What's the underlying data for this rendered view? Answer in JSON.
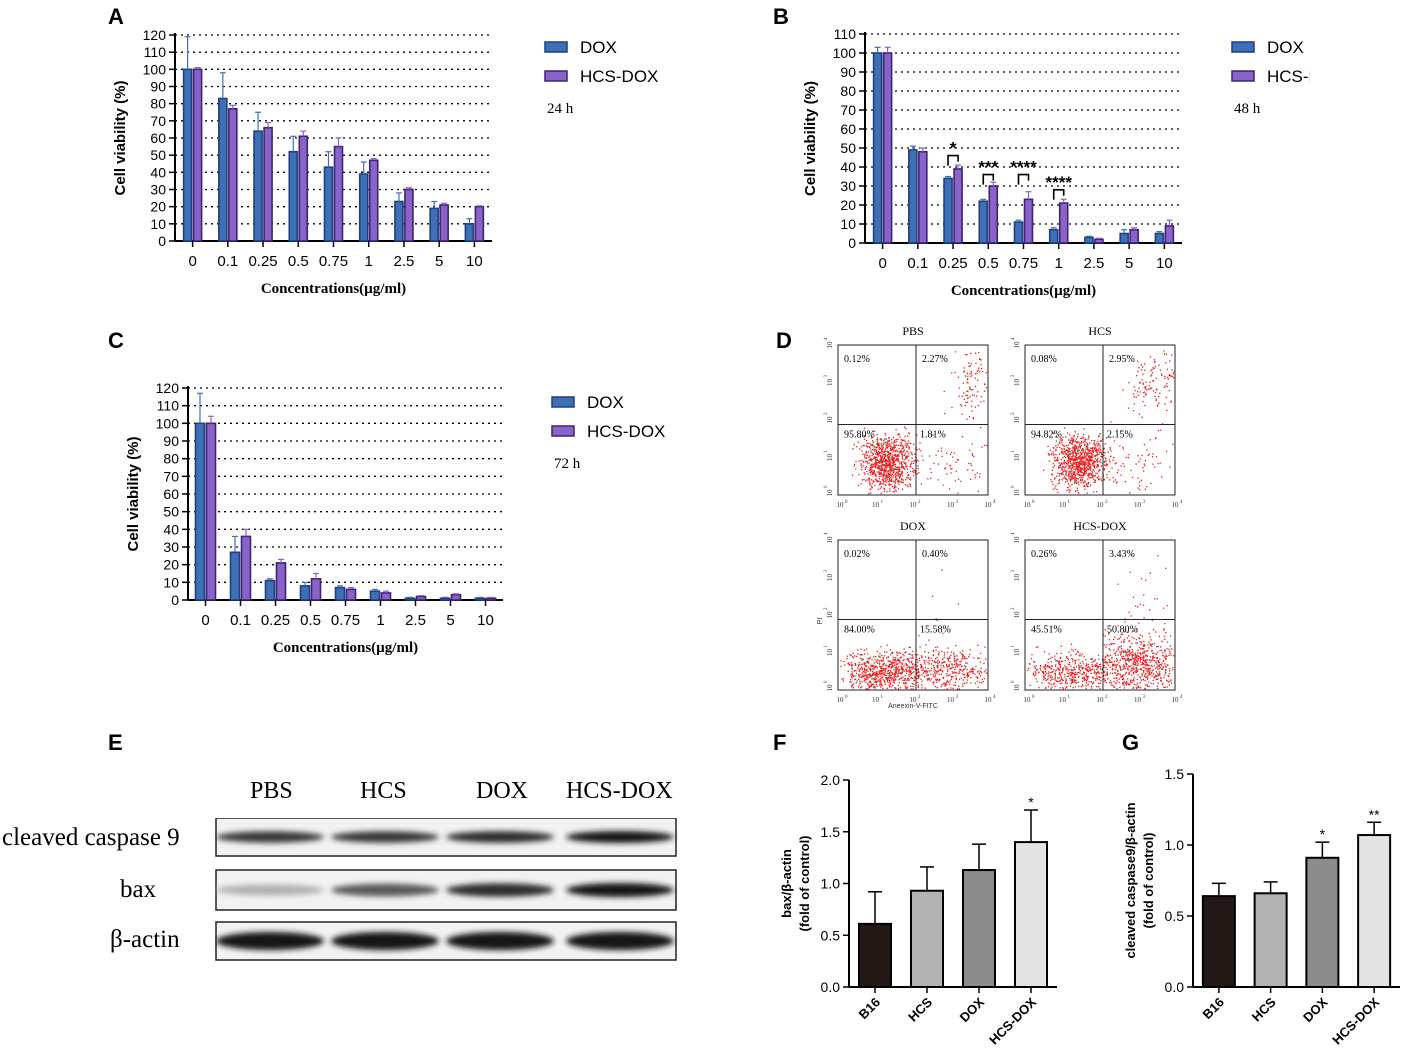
{
  "panel_labels": {
    "A": "A",
    "B": "B",
    "C": "C",
    "D": "D",
    "E": "E",
    "F": "F",
    "G": "G"
  },
  "colors": {
    "dox_fill": "#3f6fb5",
    "dox_edge": "#1e3f80",
    "hcs_fill": "#8a63c9",
    "hcs_edge": "#3d2475",
    "dot": "#e32222"
  },
  "chart_data": [
    {
      "id": "A",
      "type": "bar",
      "categories": [
        "0",
        "0.1",
        "0.25",
        "0.5",
        "0.75",
        "1",
        "2.5",
        "5",
        "10"
      ],
      "series": [
        {
          "name": "DOX",
          "values": [
            100,
            83,
            64,
            52,
            43,
            39,
            23,
            19,
            10
          ],
          "errors": [
            19,
            15,
            11,
            9,
            9,
            7,
            5,
            4,
            3
          ]
        },
        {
          "name": "HCS-DOX",
          "values": [
            100,
            77,
            66,
            61,
            55,
            47,
            30,
            21,
            20
          ],
          "errors": [
            1,
            2,
            3,
            3,
            5,
            1,
            1,
            1,
            0.5
          ]
        }
      ],
      "ylim": [
        0,
        120
      ],
      "yticks": [
        0,
        10,
        20,
        30,
        40,
        50,
        60,
        70,
        80,
        90,
        100,
        110,
        120
      ],
      "ylabel": "Cell viability (%)",
      "xlabel": "Concentrations(µg/ml)",
      "annotation": "24 h",
      "legend_position": "top-right",
      "grid": "dotted horizontal",
      "significance": []
    },
    {
      "id": "B",
      "type": "bar",
      "categories": [
        "0",
        "0.1",
        "0.25",
        "0.5",
        "0.75",
        "1",
        "2.5",
        "5",
        "10"
      ],
      "series": [
        {
          "name": "DOX",
          "values": [
            100,
            49,
            34,
            22,
            11,
            7,
            3,
            5,
            5
          ],
          "errors": [
            3,
            2,
            1,
            1,
            1,
            1,
            0.5,
            2,
            1
          ]
        },
        {
          "name": "HCS-DOX",
          "values": [
            100,
            48,
            39,
            30,
            23,
            21,
            2,
            7,
            9
          ],
          "errors": [
            3,
            2,
            2,
            2,
            4,
            2,
            0.5,
            1,
            3
          ]
        }
      ],
      "ylim": [
        0,
        110
      ],
      "yticks": [
        0,
        10,
        20,
        30,
        40,
        50,
        60,
        70,
        80,
        90,
        100,
        110
      ],
      "ylabel": "Cell viability (%)",
      "xlabel": "Concentrations(µg/ml)",
      "annotation": "48 h",
      "legend_position": "top-right",
      "grid": "dotted horizontal",
      "significance": [
        {
          "index": 2,
          "label": "*",
          "y": 46
        },
        {
          "index": 3,
          "label": "***",
          "y": 36
        },
        {
          "index": 4,
          "label": "****",
          "y": 36
        },
        {
          "index": 5,
          "label": "****",
          "y": 28
        }
      ]
    },
    {
      "id": "C",
      "type": "bar",
      "categories": [
        "0",
        "0.1",
        "0.25",
        "0.5",
        "0.75",
        "1",
        "2.5",
        "5",
        "10"
      ],
      "series": [
        {
          "name": "DOX",
          "values": [
            100,
            27,
            11,
            8,
            7,
            5,
            1,
            1,
            1
          ],
          "errors": [
            17,
            9,
            1,
            2,
            1,
            1,
            0.5,
            0.5,
            0.5
          ]
        },
        {
          "name": "HCS-DOX",
          "values": [
            100,
            36,
            21,
            12,
            6,
            4,
            2,
            3,
            1
          ],
          "errors": [
            4,
            4,
            2,
            3,
            1,
            1,
            0.5,
            0.5,
            0.5
          ]
        }
      ],
      "ylim": [
        0,
        120
      ],
      "yticks": [
        0,
        10,
        20,
        30,
        40,
        50,
        60,
        70,
        80,
        90,
        100,
        110,
        120
      ],
      "ylabel": "Cell viability (%)",
      "xlabel": "Concentrations(µg/ml)",
      "annotation": "72 h",
      "legend_position": "top-right",
      "grid": "dotted horizontal",
      "significance": []
    },
    {
      "id": "F",
      "type": "bar",
      "categories": [
        "B16",
        "HCS",
        "DOX",
        "HCS-DOX"
      ],
      "values": [
        0.61,
        0.93,
        1.13,
        1.4
      ],
      "errors": [
        0.31,
        0.23,
        0.25,
        0.31
      ],
      "bar_colors": [
        "#231815",
        "#b3b3b3",
        "#8c8c8c",
        "#e4e4e4"
      ],
      "ylim": [
        0,
        2.0
      ],
      "yticks": [
        0.0,
        0.5,
        1.0,
        1.5,
        2.0
      ],
      "tick_labels": [
        "0.0",
        "0.5",
        "1.0",
        "1.5",
        "2.0"
      ],
      "ylabel_line1": "bax/β-actin",
      "ylabel_line2": "(fold of control)",
      "significance": [
        {
          "index": 3,
          "label": "*"
        }
      ]
    },
    {
      "id": "G",
      "type": "bar",
      "categories": [
        "B16",
        "HCS",
        "DOX",
        "HCS-DOX"
      ],
      "values": [
        0.64,
        0.66,
        0.91,
        1.07
      ],
      "errors": [
        0.09,
        0.08,
        0.11,
        0.09
      ],
      "bar_colors": [
        "#231815",
        "#b3b3b3",
        "#8c8c8c",
        "#e4e4e4"
      ],
      "ylim": [
        0,
        1.5
      ],
      "yticks": [
        0.0,
        0.5,
        1.0,
        1.5
      ],
      "tick_labels": [
        "0.0",
        "0.5",
        "1.0",
        "1.5"
      ],
      "ylabel_line1": "cleaved caspase9/β-actin",
      "ylabel_line2": "(fold of control)",
      "significance": [
        {
          "index": 2,
          "label": "*"
        },
        {
          "index": 3,
          "label": "**"
        }
      ]
    }
  ],
  "flow_cytometry": {
    "x_axis_label": "Aneexin-V-FITC",
    "y_axis_label": "PI",
    "tick_base": "10",
    "tick_exponents": [
      "0",
      "1",
      "2",
      "3",
      "4"
    ],
    "plots": [
      {
        "title": "PBS",
        "q_ul": "0.12%",
        "q_ur": "2.27%",
        "q_ll": "95.80%",
        "q_lr": "1.81%"
      },
      {
        "title": "HCS",
        "q_ul": "0.08%",
        "q_ur": "2.95%",
        "q_ll": "94.82%",
        "q_lr": "2.15%"
      },
      {
        "title": "DOX",
        "q_ul": "0.02%",
        "q_ur": "0.40%",
        "q_ll": "84.00%",
        "q_lr": "15.58%"
      },
      {
        "title": "HCS-DOX",
        "q_ul": "0.26%",
        "q_ur": "3.43%",
        "q_ll": "45.51%",
        "q_lr": "50.80%"
      }
    ]
  },
  "western_blot": {
    "lanes": [
      "PBS",
      "HCS",
      "DOX",
      "HCS-DOX"
    ],
    "rows": [
      {
        "label": "cleaved caspase 9",
        "intensity": [
          0.85,
          0.85,
          0.9,
          1.0
        ]
      },
      {
        "label": "bax",
        "intensity": [
          0.3,
          0.7,
          0.9,
          1.0
        ]
      },
      {
        "label": "β-actin",
        "intensity": [
          1.0,
          1.0,
          1.0,
          1.0
        ]
      }
    ]
  }
}
